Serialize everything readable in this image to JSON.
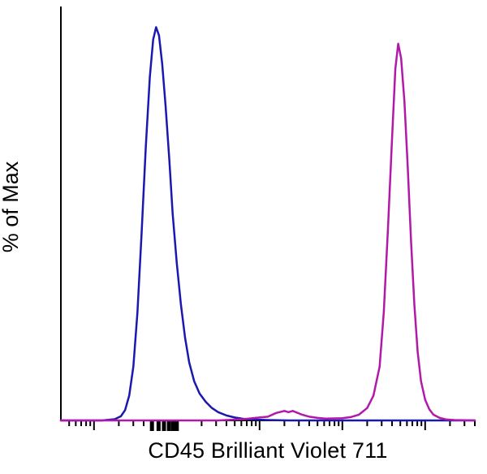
{
  "chart_data": {
    "type": "line",
    "subtype": "flow-cytometry-histogram",
    "title": "",
    "xlabel": "CD45 Brilliant Violet 711",
    "ylabel": "% of Max",
    "x_scale": "biexponential-log",
    "x_tick_labels": [],
    "ylim": [
      0,
      100
    ],
    "grid": false,
    "legend": "none",
    "background": "#ffffff",
    "axis_color": "#000000",
    "line_width": 2.5,
    "x_ticks": [
      [
        0.02,
        7,
        2
      ],
      [
        0.036,
        7,
        2
      ],
      [
        0.049,
        7,
        2
      ],
      [
        0.061,
        7,
        2
      ],
      [
        0.071,
        7,
        2
      ],
      [
        0.08,
        12,
        2
      ],
      [
        0.14,
        7,
        2
      ],
      [
        0.175,
        7,
        2
      ],
      [
        0.2,
        7,
        2
      ],
      [
        0.22,
        13,
        5
      ],
      [
        0.236,
        13,
        5
      ],
      [
        0.249,
        13,
        5
      ],
      [
        0.261,
        13,
        5
      ],
      [
        0.271,
        13,
        5
      ],
      [
        0.28,
        13,
        5
      ],
      [
        0.34,
        7,
        2
      ],
      [
        0.375,
        7,
        2
      ],
      [
        0.4,
        7,
        2
      ],
      [
        0.42,
        7,
        2
      ],
      [
        0.436,
        7,
        2
      ],
      [
        0.449,
        7,
        2
      ],
      [
        0.461,
        7,
        2
      ],
      [
        0.471,
        7,
        2
      ],
      [
        0.48,
        12,
        2
      ],
      [
        0.54,
        7,
        2
      ],
      [
        0.575,
        7,
        2
      ],
      [
        0.6,
        7,
        2
      ],
      [
        0.62,
        7,
        2
      ],
      [
        0.636,
        7,
        2
      ],
      [
        0.649,
        7,
        2
      ],
      [
        0.661,
        7,
        2
      ],
      [
        0.671,
        7,
        2
      ],
      [
        0.68,
        12,
        2
      ],
      [
        0.74,
        7,
        2
      ],
      [
        0.775,
        7,
        2
      ],
      [
        0.8,
        7,
        2
      ],
      [
        0.82,
        7,
        2
      ],
      [
        0.836,
        7,
        2
      ],
      [
        0.849,
        7,
        2
      ],
      [
        0.861,
        7,
        2
      ],
      [
        0.871,
        7,
        2
      ],
      [
        0.88,
        12,
        2
      ],
      [
        0.94,
        7,
        2
      ],
      [
        0.975,
        7,
        2
      ],
      [
        1.0,
        7,
        2
      ]
    ],
    "series": [
      {
        "name": "negative-population-blue",
        "color": "#1a18b0",
        "peak_x_fraction": 0.23,
        "peak_height_pct": 95,
        "points": [
          [
            0,
            0
          ],
          [
            10,
            0
          ],
          [
            13,
            0.3
          ],
          [
            14.5,
            1
          ],
          [
            15.5,
            2.5
          ],
          [
            16.5,
            6
          ],
          [
            17.5,
            13
          ],
          [
            18.5,
            26
          ],
          [
            19.5,
            45
          ],
          [
            20.5,
            66
          ],
          [
            21.5,
            83
          ],
          [
            22.3,
            92
          ],
          [
            23,
            95
          ],
          [
            23.7,
            93
          ],
          [
            24.5,
            86
          ],
          [
            25.3,
            76
          ],
          [
            26.2,
            63
          ],
          [
            27,
            50
          ],
          [
            28,
            38
          ],
          [
            29,
            28
          ],
          [
            30,
            20
          ],
          [
            31,
            14
          ],
          [
            32.2,
            9.5
          ],
          [
            33.5,
            6.5
          ],
          [
            35,
            4.5
          ],
          [
            36.5,
            3
          ],
          [
            38,
            2
          ],
          [
            40,
            1.2
          ],
          [
            42,
            0.7
          ],
          [
            44,
            0.4
          ],
          [
            47,
            0.2
          ],
          [
            50,
            0.1
          ],
          [
            55,
            0
          ],
          [
            100,
            0
          ]
        ]
      },
      {
        "name": "cd45-positive-population-magenta",
        "color": "#b219aa",
        "peak_x_fraction": 0.815,
        "peak_height_pct": 91,
        "points": [
          [
            0,
            0
          ],
          [
            38,
            0
          ],
          [
            44,
            0.3
          ],
          [
            47,
            0.6
          ],
          [
            50,
            0.9
          ],
          [
            52,
            1.8
          ],
          [
            54,
            2.3
          ],
          [
            55,
            2.0
          ],
          [
            56,
            2.3
          ],
          [
            58,
            1.5
          ],
          [
            60,
            0.9
          ],
          [
            62,
            0.6
          ],
          [
            64,
            0.45
          ],
          [
            66,
            0.5
          ],
          [
            68,
            0.55
          ],
          [
            70,
            0.8
          ],
          [
            72,
            1.4
          ],
          [
            74,
            3
          ],
          [
            75.5,
            6
          ],
          [
            77,
            13
          ],
          [
            78,
            26
          ],
          [
            79,
            46
          ],
          [
            80,
            68
          ],
          [
            80.8,
            85
          ],
          [
            81.5,
            91
          ],
          [
            82.2,
            87.5
          ],
          [
            83,
            77
          ],
          [
            83.8,
            61
          ],
          [
            84.6,
            43
          ],
          [
            85.4,
            28
          ],
          [
            86.2,
            16.5
          ],
          [
            87,
            9.5
          ],
          [
            88,
            5
          ],
          [
            89,
            2.7
          ],
          [
            90,
            1.4
          ],
          [
            91.5,
            0.6
          ],
          [
            93,
            0.25
          ],
          [
            95,
            0.1
          ],
          [
            100,
            0
          ]
        ]
      }
    ]
  }
}
